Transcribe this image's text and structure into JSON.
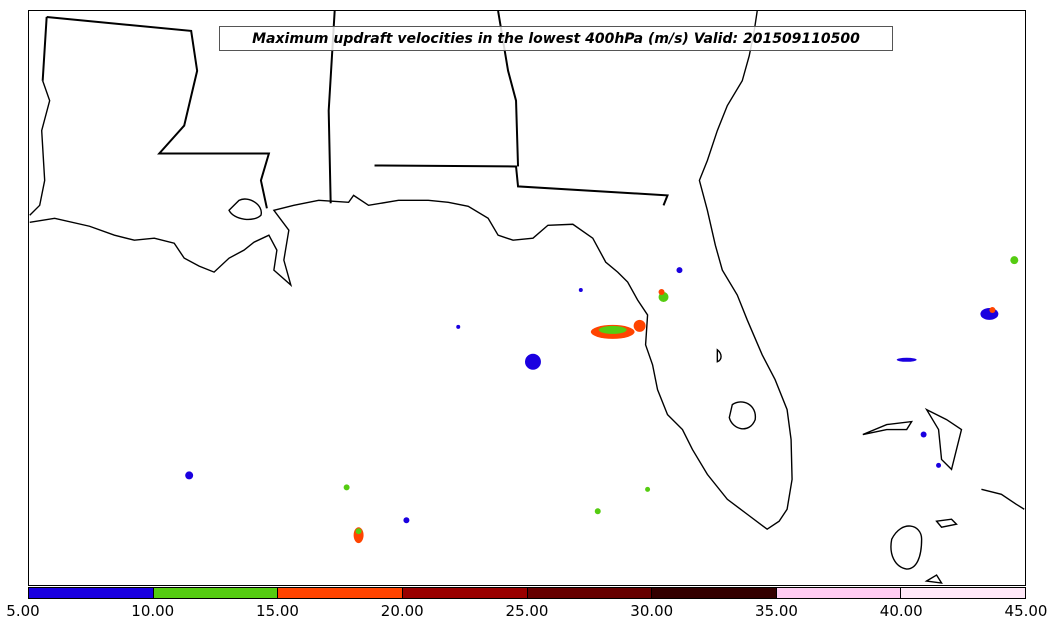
{
  "title": "Maximum updraft velocities in the lowest 400hPa (m/s) Valid: 201509110500",
  "colorbar": {
    "min": 5,
    "max": 45,
    "step": 5,
    "tick_labels": [
      "5.00",
      "10.00",
      "15.00",
      "20.00",
      "25.00",
      "30.00",
      "35.00",
      "40.00",
      "45.00"
    ],
    "colors": [
      "#1a00e0",
      "#55cc11",
      "#ff4400",
      "#990000",
      "#660000",
      "#330000",
      "#ffccf2",
      "#ffe8f8"
    ]
  },
  "map": {
    "region": "Southeastern United States / Gulf of Mexico",
    "borders": "coastlines and state boundaries drawn in black"
  }
}
